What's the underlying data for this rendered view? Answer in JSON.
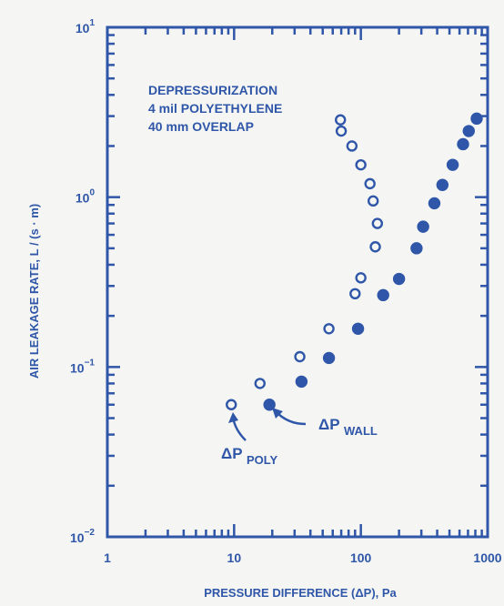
{
  "chart_data": {
    "type": "scatter",
    "title": "",
    "xlabel": "PRESSURE DIFFERENCE (ΔP), Pa",
    "ylabel": "AIR LEAKAGE RATE, L / (s · m)",
    "xscale": "log",
    "yscale": "log",
    "xlim": [
      1,
      1000
    ],
    "ylim": [
      0.01,
      10
    ],
    "x_ticks": [
      {
        "value": 1,
        "label": "1"
      },
      {
        "value": 10,
        "label": "10"
      },
      {
        "value": 100,
        "label": "100"
      },
      {
        "value": 1000,
        "label": "1000"
      }
    ],
    "y_ticks": [
      {
        "value": 0.01,
        "base": "10",
        "exp": "−2"
      },
      {
        "value": 0.1,
        "base": "10",
        "exp": "−1"
      },
      {
        "value": 1,
        "base": "10",
        "exp": "0"
      },
      {
        "value": 10,
        "base": "10",
        "exp": "1"
      }
    ],
    "grid": false,
    "legend_text": [
      "DEPRESSURIZATION",
      "4 mil POLYETHYLENE",
      "40 mm  OVERLAP"
    ],
    "series": [
      {
        "name": "ΔP POLY",
        "marker": "open-circle",
        "points": [
          {
            "x": 9.5,
            "y": 0.06
          },
          {
            "x": 16,
            "y": 0.08
          },
          {
            "x": 33,
            "y": 0.115
          },
          {
            "x": 56,
            "y": 0.168
          },
          {
            "x": 90,
            "y": 0.27
          },
          {
            "x": 100,
            "y": 0.335
          },
          {
            "x": 130,
            "y": 0.51
          },
          {
            "x": 135,
            "y": 0.7
          },
          {
            "x": 125,
            "y": 0.95
          },
          {
            "x": 118,
            "y": 1.2
          },
          {
            "x": 100,
            "y": 1.55
          },
          {
            "x": 85,
            "y": 2.0
          },
          {
            "x": 70,
            "y": 2.45
          },
          {
            "x": 69,
            "y": 2.85
          }
        ]
      },
      {
        "name": "ΔP WALL",
        "marker": "filled-circle",
        "points": [
          {
            "x": 19,
            "y": 0.06
          },
          {
            "x": 34,
            "y": 0.082
          },
          {
            "x": 56,
            "y": 0.113
          },
          {
            "x": 95,
            "y": 0.168
          },
          {
            "x": 150,
            "y": 0.265
          },
          {
            "x": 200,
            "y": 0.33
          },
          {
            "x": 275,
            "y": 0.5
          },
          {
            "x": 310,
            "y": 0.67
          },
          {
            "x": 380,
            "y": 0.92
          },
          {
            "x": 440,
            "y": 1.18
          },
          {
            "x": 530,
            "y": 1.55
          },
          {
            "x": 640,
            "y": 2.05
          },
          {
            "x": 710,
            "y": 2.45
          },
          {
            "x": 820,
            "y": 2.9
          }
        ]
      }
    ],
    "annotations": [
      {
        "id": "poly",
        "text": "ΔP",
        "sub": "POLY"
      },
      {
        "id": "wall",
        "text": "ΔP",
        "sub": "WALL"
      }
    ]
  },
  "colors": {
    "ink": "#2f56a8",
    "background": "#f5f6f3"
  }
}
